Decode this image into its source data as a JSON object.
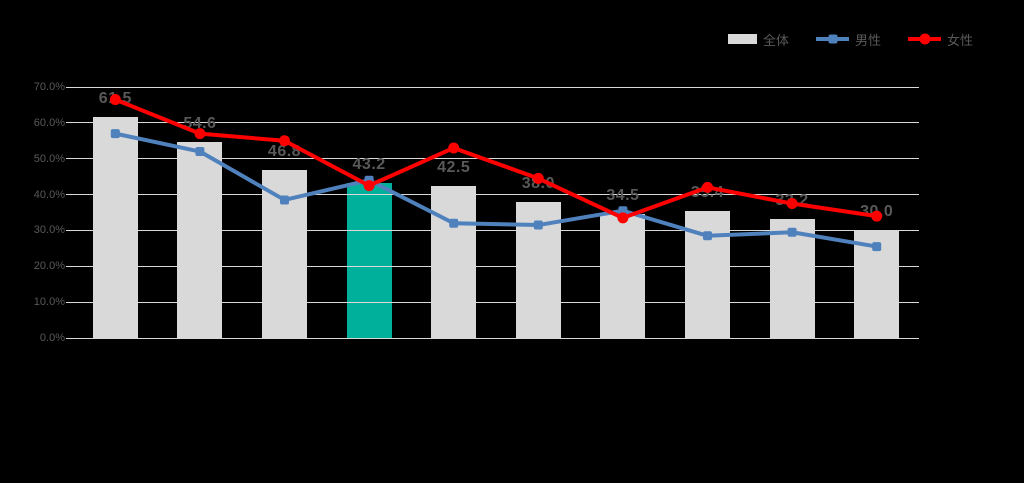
{
  "background": "#000000",
  "legend": {
    "position": "top-right",
    "items": [
      {
        "label": "全体",
        "color": "#d9d9d9",
        "marker": "bar"
      },
      {
        "label": "男性",
        "color": "#4f81bd",
        "marker": "line-square"
      },
      {
        "label": "女性",
        "color": "#ff0000",
        "marker": "line-circle"
      }
    ]
  },
  "y_axis": {
    "tick_labels": [
      "0.0%",
      "10.0%",
      "20.0%",
      "30.0%",
      "40.0%",
      "50.0%",
      "60.0%",
      "70.0%"
    ]
  },
  "source_note": "",
  "chart_data": {
    "type": "bar",
    "subtype": "bars-with-two-lines",
    "title": "",
    "xlabel": "",
    "ylabel": "",
    "ylim": [
      0,
      70
    ],
    "y_tick_step": 10,
    "y_tick_format": "0.0%",
    "grid": true,
    "grid_color": "#d9d9d9",
    "label_color": "#595959",
    "legend_position": "top-right",
    "categories": [
      "",
      "",
      "",
      "",
      "",
      "",
      "",
      "",
      "",
      ""
    ],
    "series": [
      {
        "name": "全体",
        "type": "bar",
        "color": "#d9d9d9",
        "highlight_index": 3,
        "highlight_color": "#00b09b",
        "values": [
          61.5,
          54.6,
          46.8,
          43.2,
          42.5,
          38.0,
          34.5,
          35.4,
          33.2,
          30.0
        ],
        "data_labels": [
          "61.5",
          "54.6",
          "46.8",
          "43.2",
          "42.5",
          "38.0",
          "34.5",
          "35.4",
          "33.2",
          "30.0"
        ]
      },
      {
        "name": "男性",
        "type": "line",
        "marker": "square",
        "color": "#4f81bd",
        "values": [
          57.0,
          52.0,
          38.5,
          44.0,
          32.0,
          31.5,
          35.5,
          28.5,
          29.5,
          25.5
        ]
      },
      {
        "name": "女性",
        "type": "line",
        "marker": "circle",
        "color": "#ff0000",
        "values": [
          66.5,
          57.0,
          55.0,
          42.5,
          53.0,
          44.5,
          33.5,
          42.0,
          37.5,
          34.0
        ]
      }
    ]
  }
}
